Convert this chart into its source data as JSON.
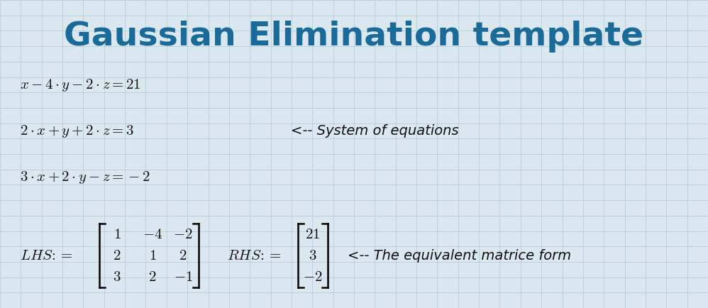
{
  "title": "Gaussian Elimination template",
  "title_color": "#1a6b9a",
  "title_fontsize": 34,
  "bg_color": "#dce8f0",
  "grid_color": "#b8cfd8",
  "text_color": "#111111",
  "annotation1": "<-- System of equations",
  "annotation2": "<-- The equivalent matrice form",
  "eq_fontsize": 15,
  "annot_fontsize": 14,
  "matrix_fontsize": 15,
  "lhs_matrix_rows": [
    [
      "1",
      "-4",
      "-2"
    ],
    [
      "2",
      "1",
      "2"
    ],
    [
      "3",
      "2",
      "-1"
    ]
  ],
  "rhs_matrix_rows": [
    [
      "21"
    ],
    [
      "3"
    ],
    [
      "-2"
    ]
  ]
}
